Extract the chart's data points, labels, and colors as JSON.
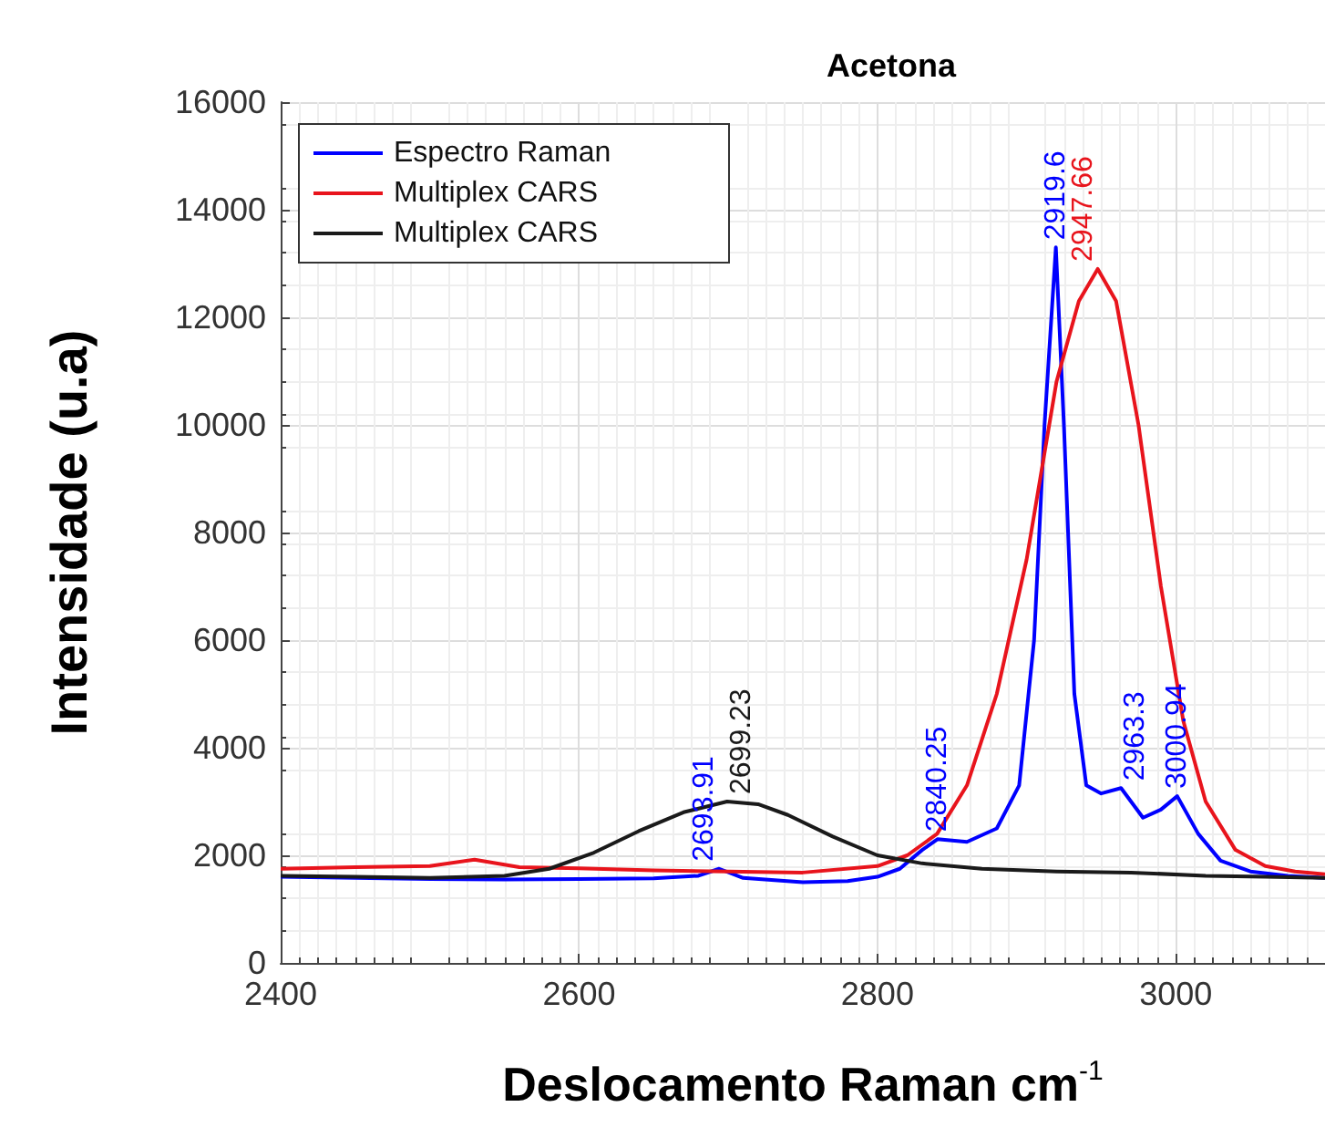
{
  "chart_data": {
    "type": "line",
    "title": "Acetona",
    "xlabel": "Deslocamento Raman cm$^{-1}$",
    "ylabel": "Intensidade (u.a)",
    "xlim": [
      2400,
      3100
    ],
    "xticks": [
      2400,
      2600,
      2800,
      3000
    ],
    "ylim": [
      0,
      16000
    ],
    "yticks": [
      0,
      2000,
      4000,
      6000,
      8000,
      10000,
      12000,
      14000,
      16000
    ],
    "grid": true,
    "legend": "top left",
    "marker": "none",
    "line_style": "solid",
    "annotations": [
      {
        "text": "2693.91",
        "x": 2693.91,
        "y": 1750
      },
      {
        "text": "2840.25",
        "x": 2840.25,
        "y": 2300
      },
      {
        "text": "2919.6",
        "x": 2919.6,
        "y": 13300
      },
      {
        "text": "2963.3",
        "x": 2963.3,
        "y": 3250
      },
      {
        "text": "3000.94",
        "x": 3000.94,
        "y": 3100
      },
      {
        "text": "2947.66",
        "x": 2947.66,
        "y": 12900
      },
      {
        "text": "2699.23",
        "x": 2699.23,
        "y": 3000
      }
    ],
    "series": [
      {
        "name": "Espectro Raman",
        "color": "#0000ff",
        "x": [
          2400,
          2450,
          2500,
          2550,
          2600,
          2650,
          2680,
          2693.91,
          2710,
          2750,
          2780,
          2800,
          2815,
          2830,
          2840.25,
          2860,
          2880,
          2895,
          2905,
          2912,
          2919.6,
          2925,
          2932,
          2940,
          2950,
          2963.3,
          2978,
          2990,
          3000.94,
          3015,
          3030,
          3050,
          3075,
          3100
        ],
        "values": [
          1600,
          1580,
          1560,
          1550,
          1560,
          1570,
          1620,
          1750,
          1580,
          1500,
          1520,
          1600,
          1750,
          2100,
          2300,
          2250,
          2500,
          3300,
          6000,
          10000,
          13300,
          10000,
          5000,
          3300,
          3150,
          3250,
          2700,
          2850,
          3100,
          2400,
          1900,
          1700,
          1620,
          1580
        ]
      },
      {
        "name": "Multiplex CARS",
        "color": "#e8141c",
        "x": [
          2400,
          2450,
          2500,
          2530,
          2560,
          2600,
          2650,
          2700,
          2750,
          2800,
          2820,
          2840,
          2860,
          2880,
          2900,
          2920,
          2935,
          2947.66,
          2960,
          2975,
          2990,
          3005,
          3020,
          3040,
          3060,
          3080,
          3100
        ],
        "values": [
          1750,
          1780,
          1800,
          1920,
          1780,
          1760,
          1720,
          1700,
          1680,
          1800,
          2000,
          2400,
          3300,
          5000,
          7500,
          10800,
          12300,
          12900,
          12300,
          10000,
          7000,
          4500,
          3000,
          2100,
          1800,
          1700,
          1650
        ]
      },
      {
        "name": "Multiplex CARS",
        "color": "#1a1a1a",
        "x": [
          2400,
          2450,
          2500,
          2550,
          2580,
          2610,
          2640,
          2670,
          2699.23,
          2720,
          2740,
          2770,
          2800,
          2830,
          2870,
          2920,
          2970,
          3020,
          3060,
          3100
        ],
        "values": [
          1620,
          1600,
          1580,
          1620,
          1750,
          2050,
          2450,
          2800,
          3000,
          2950,
          2750,
          2350,
          2000,
          1850,
          1750,
          1700,
          1680,
          1620,
          1600,
          1580
        ]
      }
    ]
  }
}
